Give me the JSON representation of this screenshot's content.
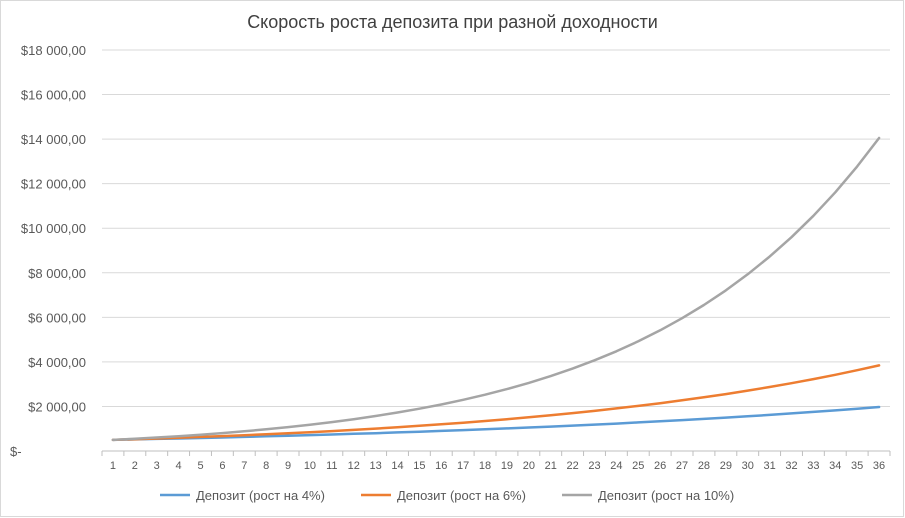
{
  "chart_data": {
    "type": "line",
    "title": "Скорость роста депозита при разной доходности",
    "xlabel": "",
    "ylabel": "",
    "x": [
      1,
      2,
      3,
      4,
      5,
      6,
      7,
      8,
      9,
      10,
      11,
      12,
      13,
      14,
      15,
      16,
      17,
      18,
      19,
      20,
      21,
      22,
      23,
      24,
      25,
      26,
      27,
      28,
      29,
      30,
      31,
      32,
      33,
      34,
      35,
      36
    ],
    "ylim": [
      0,
      18000
    ],
    "y_ticks": [
      0,
      2000,
      4000,
      6000,
      8000,
      10000,
      12000,
      14000,
      16000,
      18000
    ],
    "y_tick_labels": [
      "$-",
      "$2 000,00",
      "$4 000,00",
      "$6 000,00",
      "$8 000,00",
      "$10 000,00",
      "$12 000,00",
      "$14 000,00",
      "$16 000,00",
      "$18 000,00"
    ],
    "grid": "horizontal",
    "legend_position": "bottom",
    "series": [
      {
        "name": "Депозит (рост на 4%)",
        "color": "#5b9bd5",
        "values": [
          500,
          520,
          541,
          562,
          585,
          608,
          633,
          658,
          684,
          712,
          740,
          770,
          801,
          833,
          866,
          900,
          936,
          974,
          1013,
          1053,
          1096,
          1139,
          1185,
          1232,
          1282,
          1333,
          1386,
          1442,
          1499,
          1559,
          1622,
          1687,
          1754,
          1824,
          1897,
          1973
        ]
      },
      {
        "name": "Депозит (рост на 6%)",
        "color": "#ed7d31",
        "values": [
          500,
          530,
          562,
          596,
          631,
          669,
          709,
          752,
          797,
          845,
          895,
          949,
          1006,
          1066,
          1130,
          1198,
          1270,
          1346,
          1427,
          1513,
          1604,
          1700,
          1802,
          1910,
          2025,
          2146,
          2275,
          2411,
          2556,
          2710,
          2872,
          3045,
          3227,
          3421,
          3626,
          3844
        ]
      },
      {
        "name": "Депозит (рост на 10%)",
        "color": "#a5a5a5",
        "values": [
          500,
          550,
          605,
          666,
          732,
          805,
          886,
          974,
          1072,
          1179,
          1297,
          1427,
          1569,
          1726,
          1899,
          2089,
          2297,
          2527,
          2780,
          3058,
          3364,
          3700,
          4070,
          4477,
          4925,
          5417,
          5959,
          6555,
          7210,
          7932,
          8725,
          9597,
          10557,
          11613,
          12774,
          14051
        ]
      }
    ]
  }
}
